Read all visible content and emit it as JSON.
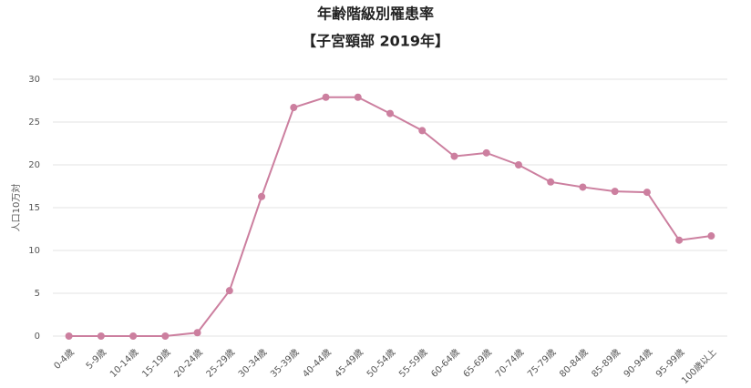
{
  "chart_data": {
    "type": "line",
    "title": "年齢階級別罹患率",
    "subtitle": "【子宮頸部 2019年】",
    "y_label": "人口10万対",
    "categories": [
      "0-4歳",
      "5-9歳",
      "10-14歳",
      "15-19歳",
      "20-24歳",
      "25-29歳",
      "30-34歳",
      "35-39歳",
      "40-44歳",
      "45-49歳",
      "50-54歳",
      "55-59歳",
      "60-64歳",
      "65-69歳",
      "70-74歳",
      "75-79歳",
      "80-84歳",
      "85-89歳",
      "90-94歳",
      "95-99歳",
      "100歳以上"
    ],
    "values": [
      0,
      0,
      0,
      0,
      0.4,
      5.3,
      16.3,
      26.7,
      27.9,
      27.9,
      26.0,
      24.0,
      21.0,
      21.4,
      20.0,
      18.0,
      17.4,
      16.9,
      16.8,
      11.2,
      11.7
    ],
    "color": "#cc7f9f",
    "ylim": [
      0,
      30
    ],
    "yticks": [
      0,
      5,
      10,
      15,
      20,
      25,
      30
    ],
    "grid": true
  }
}
